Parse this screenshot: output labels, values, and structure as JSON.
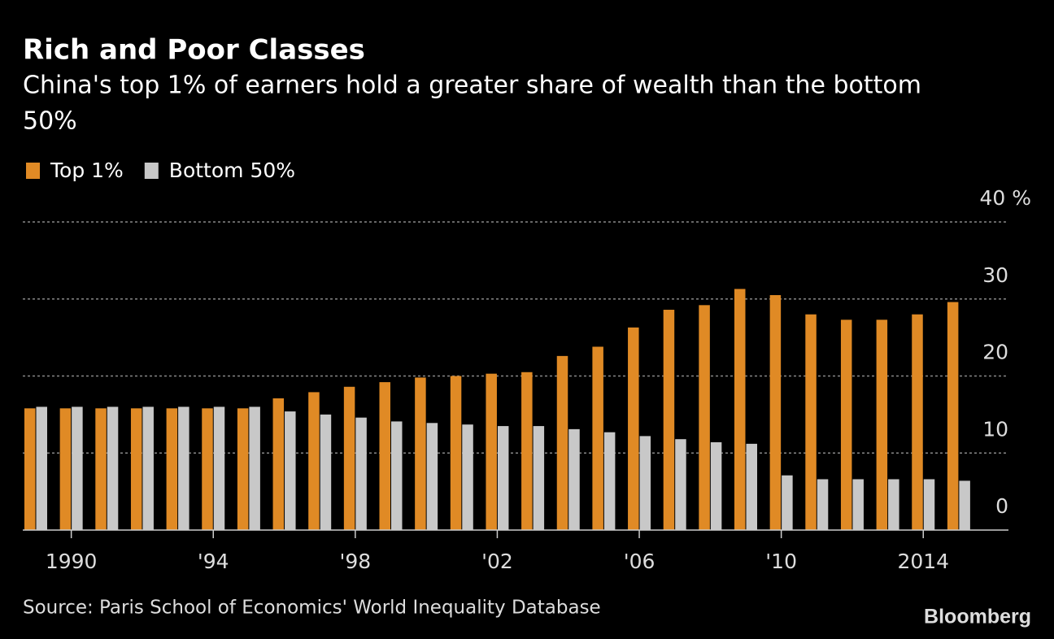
{
  "chart_data": {
    "type": "bar",
    "title": "Rich and Poor Classes",
    "subtitle": [
      "China's top 1% of earners hold a greater share of wealth than the bottom",
      "50%"
    ],
    "source": "Source: Paris School of Economics' World Inequality Database",
    "brand": "Bloomberg",
    "categories": [
      null,
      "1990",
      null,
      null,
      null,
      "'94",
      null,
      null,
      null,
      "'98",
      null,
      null,
      null,
      "'02",
      null,
      null,
      null,
      "'06",
      null,
      null,
      null,
      "'10",
      null,
      null,
      null,
      "2014",
      null
    ],
    "series": [
      {
        "name": "Top 1%",
        "color": "#e08a25",
        "values": [
          15.8,
          15.8,
          15.8,
          15.8,
          15.8,
          15.8,
          15.8,
          17.1,
          17.9,
          18.6,
          19.2,
          19.8,
          20.0,
          20.3,
          20.5,
          22.6,
          23.8,
          26.3,
          28.6,
          29.2,
          31.3,
          30.5,
          28.0,
          27.3,
          27.3,
          28.0,
          29.6
        ]
      },
      {
        "name": "Bottom 50%",
        "color": "#c8c8c8",
        "values": [
          16.0,
          16.0,
          16.0,
          16.0,
          16.0,
          16.0,
          16.0,
          15.4,
          15.0,
          14.6,
          14.1,
          13.9,
          13.7,
          13.5,
          13.5,
          13.1,
          12.7,
          12.2,
          11.8,
          11.4,
          11.2,
          7.1,
          6.6,
          6.6,
          6.6,
          6.6,
          6.4
        ]
      }
    ],
    "ylim": [
      0,
      40
    ],
    "yticks": [
      0,
      10,
      20,
      30,
      {
        "value": 40,
        "label": "40 %"
      }
    ],
    "grid": true,
    "legend": "top-left"
  }
}
